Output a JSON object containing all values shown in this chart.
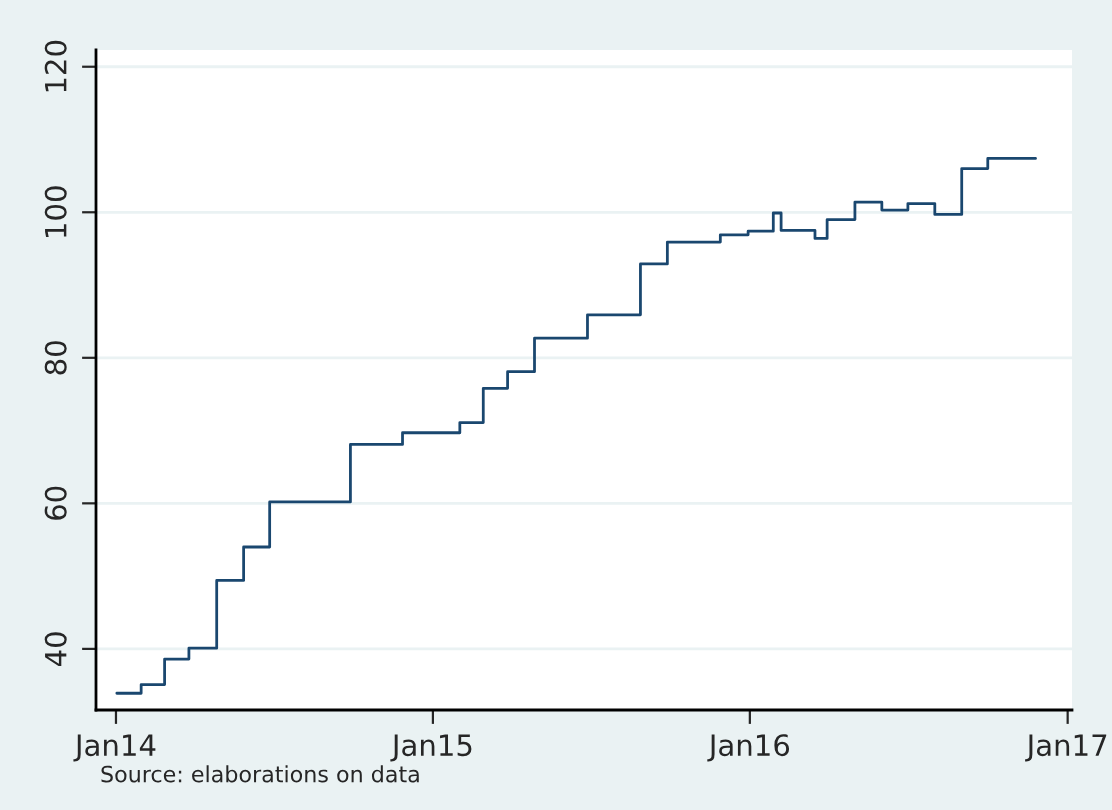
{
  "chart_data": {
    "type": "step",
    "annotations": [
      "Source: elaborations on data"
    ],
    "x": [
      "2014-01-02",
      "2014-01-30",
      "2014-02-26",
      "2014-03-26",
      "2014-04-27",
      "2014-05-28",
      "2014-06-27",
      "2014-09-28",
      "2014-11-27",
      "2015-02-01",
      "2015-02-28",
      "2015-03-28",
      "2015-04-28",
      "2015-06-28",
      "2015-08-28",
      "2015-09-28",
      "2015-11-28",
      "2015-12-30",
      "2016-01-28",
      "2016-02-06",
      "2016-03-16",
      "2016-03-30",
      "2016-05-01",
      "2016-06-01",
      "2016-07-01",
      "2016-08-01",
      "2016-09-01",
      "2016-10-01",
      "2016-11-25"
    ],
    "series": [
      {
        "color": "#1a476f",
        "values": [
          33.9,
          35.1,
          38.6,
          40.1,
          49.4,
          54.0,
          60.2,
          68.1,
          69.7,
          71.1,
          75.8,
          78.1,
          82.7,
          85.9,
          92.9,
          95.9,
          96.9,
          97.4,
          99.9,
          97.5,
          96.4,
          99.0,
          101.4,
          100.3,
          101.2,
          99.7,
          106.0,
          107.4,
          107.4
        ]
      }
    ],
    "xlim": [
      "2013-12-09",
      "2017-01-06"
    ],
    "ylim": [
      31.6,
      122.3
    ],
    "xticks": [
      {
        "value": "2014-01-01",
        "label": "Jan14"
      },
      {
        "value": "2015-01-01",
        "label": "Jan15"
      },
      {
        "value": "2016-01-01",
        "label": "Jan16"
      },
      {
        "value": "2017-01-01",
        "label": "Jan17"
      }
    ],
    "yticks": [
      40,
      60,
      80,
      100,
      120
    ],
    "grid": "y",
    "legend": false
  }
}
